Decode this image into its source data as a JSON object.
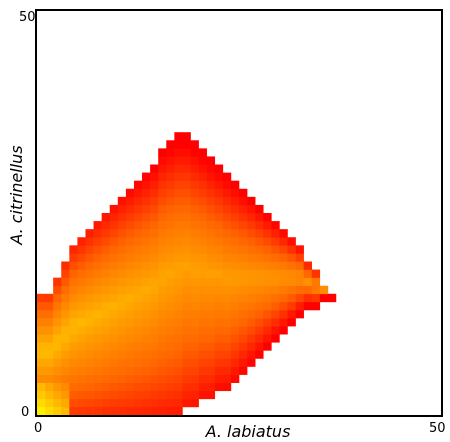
{
  "chart_data": {
    "type": "heatmap",
    "xlabel": "A. labiatus",
    "ylabel": "A. citrinellus",
    "xlim": [
      0,
      50
    ],
    "ylim": [
      0,
      50
    ],
    "x_ticks": [
      "0",
      "50"
    ],
    "y_ticks": [
      "0",
      "50"
    ],
    "cell_size": 1,
    "colormap": [
      "#ff0000",
      "#ff6600",
      "#ffa500",
      "#ffee00"
    ],
    "region_boundary_note": "occupied region is a tilted square (diamond) from origin",
    "region": {
      "top_column_heights": [
        [
          0,
          15
        ],
        [
          1,
          15
        ],
        [
          2,
          17
        ],
        [
          3,
          19
        ],
        [
          4,
          21
        ],
        [
          5,
          22
        ],
        [
          6,
          23
        ],
        [
          7,
          24
        ],
        [
          8,
          25
        ],
        [
          9,
          26
        ],
        [
          10,
          27
        ],
        [
          11,
          28
        ],
        [
          12,
          29
        ],
        [
          13,
          30
        ],
        [
          14,
          31
        ],
        [
          15,
          33
        ],
        [
          16,
          34
        ],
        [
          17,
          35
        ],
        [
          18,
          35
        ],
        [
          19,
          34
        ],
        [
          20,
          33
        ],
        [
          21,
          32
        ],
        [
          22,
          31
        ],
        [
          23,
          30
        ],
        [
          24,
          29
        ],
        [
          25,
          28
        ],
        [
          26,
          27
        ],
        [
          27,
          26
        ],
        [
          28,
          25
        ],
        [
          29,
          24
        ],
        [
          30,
          23
        ],
        [
          31,
          22
        ],
        [
          32,
          21
        ],
        [
          33,
          19
        ],
        [
          34,
          18
        ],
        [
          35,
          16
        ],
        [
          36,
          15
        ],
        [
          37,
          13
        ]
      ],
      "bottom_column_heights": [
        [
          0,
          0
        ],
        [
          1,
          0
        ],
        [
          2,
          0
        ],
        [
          3,
          0
        ],
        [
          4,
          0
        ],
        [
          5,
          0
        ],
        [
          6,
          0
        ],
        [
          7,
          0
        ],
        [
          8,
          0
        ],
        [
          9,
          0
        ],
        [
          10,
          0
        ],
        [
          11,
          0
        ],
        [
          12,
          0
        ],
        [
          13,
          0
        ],
        [
          14,
          0
        ],
        [
          15,
          0
        ],
        [
          16,
          0
        ],
        [
          17,
          0
        ],
        [
          18,
          1
        ],
        [
          19,
          1
        ],
        [
          20,
          2
        ],
        [
          21,
          2
        ],
        [
          22,
          3
        ],
        [
          23,
          3
        ],
        [
          24,
          4
        ],
        [
          25,
          5
        ],
        [
          26,
          6
        ],
        [
          27,
          7
        ],
        [
          28,
          8
        ],
        [
          29,
          9
        ],
        [
          30,
          10
        ],
        [
          31,
          11
        ],
        [
          32,
          12
        ],
        [
          33,
          13
        ],
        [
          34,
          13
        ],
        [
          35,
          14
        ],
        [
          36,
          14
        ],
        [
          37,
          13
        ]
      ]
    }
  }
}
